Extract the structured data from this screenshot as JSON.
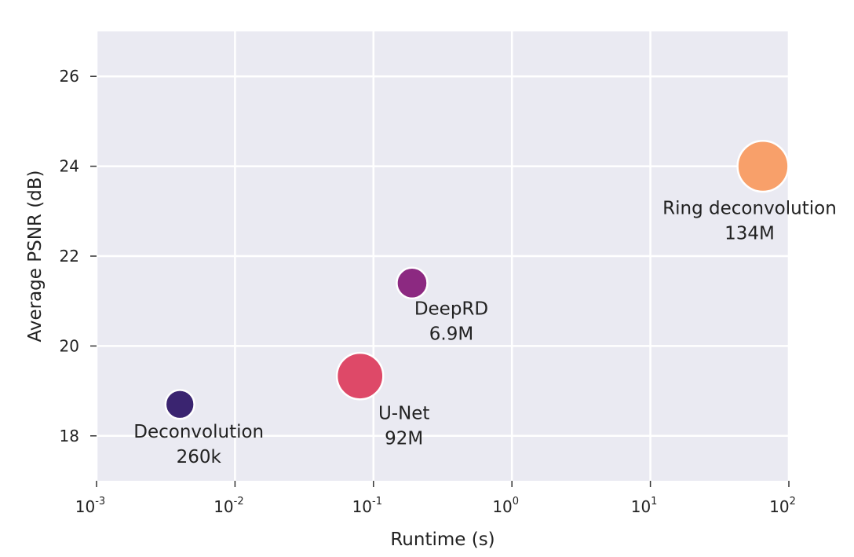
{
  "chart_data": {
    "type": "scatter",
    "title": "",
    "xlabel": "Runtime (s)",
    "ylabel": "Average PSNR (dB)",
    "xscale": "log",
    "xlim": [
      0.001,
      100
    ],
    "ylim": [
      17,
      27
    ],
    "grid": true,
    "x_ticks": [
      {
        "base": "10",
        "exp": "-3",
        "value": 0.001
      },
      {
        "base": "10",
        "exp": "-2",
        "value": 0.01
      },
      {
        "base": "10",
        "exp": "-1",
        "value": 0.1
      },
      {
        "base": "10",
        "exp": "0",
        "value": 1
      },
      {
        "base": "10",
        "exp": "1",
        "value": 10
      },
      {
        "base": "10",
        "exp": "2",
        "value": 100
      }
    ],
    "y_ticks": [
      {
        "label": "18",
        "value": 18
      },
      {
        "label": "20",
        "value": 20
      },
      {
        "label": "22",
        "value": 22
      },
      {
        "label": "24",
        "value": 24
      },
      {
        "label": "26",
        "value": 26
      }
    ],
    "points": [
      {
        "name": "Deconvolution",
        "params": "260k",
        "x": 0.004,
        "y": 18.7,
        "size_rel": 0.3,
        "color": "#3a2470"
      },
      {
        "name": "U-Net",
        "params": "92M",
        "x": 0.08,
        "y": 19.33,
        "size_rel": 0.7,
        "color": "#de4968"
      },
      {
        "name": "DeepRD",
        "params": "6.9M",
        "x": 0.19,
        "y": 21.4,
        "size_rel": 0.34,
        "color": "#8c2981"
      },
      {
        "name": "Ring deconvolution",
        "params": "134M",
        "x": 65,
        "y": 24.0,
        "size_rel": 0.8,
        "color": "#f8a06a"
      }
    ]
  }
}
